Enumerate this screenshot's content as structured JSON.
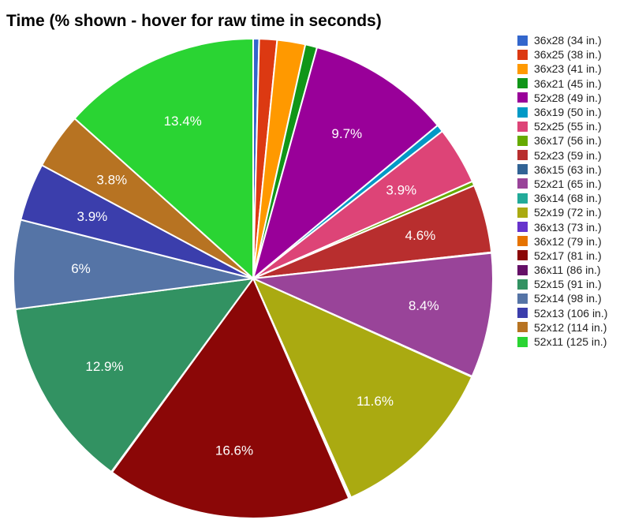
{
  "chart_data": {
    "type": "pie",
    "title": "Time (% shown - hover for raw time in seconds)",
    "legend_position": "right",
    "slices": [
      {
        "label": "36x28 (34 in.)",
        "value": 0.4,
        "color": "#3366cc"
      },
      {
        "label": "36x25 (38 in.)",
        "value": 1.2,
        "color": "#dc3912"
      },
      {
        "label": "36x23 (41 in.)",
        "value": 1.9,
        "color": "#ff9900"
      },
      {
        "label": "36x21 (45 in.)",
        "value": 0.8,
        "color": "#109618"
      },
      {
        "label": "52x28 (49 in.)",
        "value": 9.7,
        "color": "#990099",
        "display": "9.7%"
      },
      {
        "label": "36x19 (50 in.)",
        "value": 0.5,
        "color": "#0099c6"
      },
      {
        "label": "52x25 (55 in.)",
        "value": 3.9,
        "color": "#dd4477",
        "display": "3.9%"
      },
      {
        "label": "36x17 (56 in.)",
        "value": 0.3,
        "color": "#66aa00"
      },
      {
        "label": "52x23 (59 in.)",
        "value": 4.6,
        "color": "#b82e2e",
        "display": "4.6%"
      },
      {
        "label": "36x15 (63 in.)",
        "value": 0.05,
        "color": "#316395"
      },
      {
        "label": "52x21 (65 in.)",
        "value": 8.4,
        "color": "#994499",
        "display": "8.4%"
      },
      {
        "label": "36x14 (68 in.)",
        "value": 0.05,
        "color": "#22aa99"
      },
      {
        "label": "52x19 (72 in.)",
        "value": 11.6,
        "color": "#aaaa11",
        "display": "11.6%"
      },
      {
        "label": "36x13 (73 in.)",
        "value": 0.1,
        "color": "#6633cc"
      },
      {
        "label": "36x12 (79 in.)",
        "value": 0.05,
        "color": "#e67300"
      },
      {
        "label": "52x17 (81 in.)",
        "value": 16.6,
        "color": "#8b0707",
        "display": "16.6%"
      },
      {
        "label": "36x11 (86 in.)",
        "value": 0.05,
        "color": "#651067"
      },
      {
        "label": "52x15 (91 in.)",
        "value": 12.9,
        "color": "#329262",
        "display": "12.9%"
      },
      {
        "label": "52x14 (98 in.)",
        "value": 6.0,
        "color": "#5574a6",
        "display": "6%"
      },
      {
        "label": "52x13 (106 in.)",
        "value": 3.9,
        "color": "#3b3eac",
        "display": "3.9%"
      },
      {
        "label": "52x12 (114 in.)",
        "value": 3.8,
        "color": "#b77322",
        "display": "3.8%"
      },
      {
        "label": "52x11 (125 in.)",
        "value": 13.4,
        "color": "#2ad433",
        "display": "13.4%"
      }
    ]
  }
}
